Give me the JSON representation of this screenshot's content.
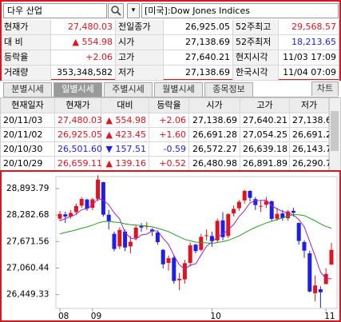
{
  "search": {
    "query": "다우 산업",
    "market": "[미국]:Dow Jones Indices"
  },
  "quote": {
    "rows": [
      [
        "현재가",
        "27,480.03",
        "전일종가",
        "26,925.05",
        "52주최고",
        "29,568.57"
      ],
      [
        "대 비",
        "▲ 554.98",
        "시가",
        "27,138.69",
        "52주최저",
        "18,213.65"
      ],
      [
        "등락율",
        "+2.06",
        "고가",
        "27,640.21",
        "현지시각",
        "11/03 17:09"
      ],
      [
        "거래량",
        "353,348,582",
        "저가",
        "27,138.69",
        "한국시각",
        "11/04 07:09"
      ]
    ]
  },
  "tabs": [
    "분별시세",
    "일별시세",
    "주별시세",
    "월별시세",
    "종목정보"
  ],
  "active_tab": 1,
  "chart_button": "차트",
  "daily": {
    "header": [
      "현재일자",
      "현재가",
      "대비",
      "등락율",
      "시가",
      "고가",
      "저가"
    ],
    "rows": [
      [
        "20/11/03",
        "27,480.03",
        "▲ 554.98",
        "+2.06",
        "27,138.69",
        "27,640.21",
        "27,138.69"
      ],
      [
        "20/11/02",
        "26,925.05",
        "▲ 423.45",
        "+1.60",
        "26,691.28",
        "27,054.25",
        "26,691.28"
      ],
      [
        "20/10/30",
        "26,501.60",
        "▼ 157.51",
        "-0.59",
        "26,572.27",
        "26,639.18",
        "26,143.77"
      ],
      [
        "20/10/29",
        "26,659.11",
        "▲ 139.16",
        "+0.52",
        "26,480.98",
        "26,891.89",
        "26,290.78"
      ]
    ]
  },
  "chart_data": {
    "type": "candlestick",
    "x": [
      "08",
      null,
      null,
      null,
      null,
      null,
      "09",
      null,
      null,
      null,
      null,
      null,
      null,
      null,
      null,
      null,
      null,
      null,
      null,
      null,
      null,
      null,
      null,
      null,
      null,
      null,
      null,
      null,
      "10",
      null,
      null,
      null,
      null,
      null,
      null,
      null,
      null,
      null,
      null,
      null,
      null,
      null,
      null,
      null,
      null,
      null,
      null,
      null,
      null,
      "11",
      null
    ],
    "open": [
      28200,
      28300,
      28250,
      28350,
      28500,
      28640,
      28450,
      28660,
      29040,
      28290,
      27850,
      27560,
      27900,
      27560,
      27750,
      28030,
      28020,
      27950,
      27880,
      27480,
      27180,
      27300,
      26780,
      26800,
      27180,
      27600,
      27480,
      27800,
      27800,
      27700,
      28160,
      27800,
      28320,
      28440,
      28620,
      28840,
      28650,
      28490,
      28520,
      28600,
      28200,
      28320,
      28210,
      28380,
      28100,
      27660,
      27400,
      26481,
      26572,
      26691,
      27139
    ],
    "high": [
      28380,
      28360,
      28400,
      28550,
      28700,
      28660,
      28680,
      29200,
      29050,
      28400,
      27900,
      28000,
      27950,
      27800,
      28050,
      28100,
      28120,
      27980,
      27930,
      27500,
      27350,
      27350,
      26950,
      27250,
      27650,
      27620,
      27850,
      27950,
      27900,
      28200,
      28350,
      28330,
      28500,
      28630,
      28870,
      28850,
      28700,
      28620,
      28700,
      28620,
      28450,
      28400,
      28400,
      28450,
      28110,
      27700,
      27460,
      26892,
      26639,
      27054,
      27640
    ],
    "low": [
      28150,
      28100,
      28200,
      28300,
      28450,
      28380,
      28400,
      28600,
      28250,
      27950,
      27450,
      27500,
      27450,
      27400,
      27700,
      27900,
      27950,
      27800,
      27600,
      27050,
      27000,
      26700,
      26550,
      26700,
      27100,
      27400,
      27450,
      27700,
      27550,
      27650,
      27700,
      27750,
      28250,
      28380,
      28550,
      28600,
      28400,
      28350,
      28450,
      28150,
      28150,
      28150,
      28150,
      28250,
      27600,
      27300,
      26500,
      26291,
      26144,
      26691,
      27139
    ],
    "close": [
      28308,
      28249,
      28332,
      28492,
      28654,
      28430,
      28646,
      29100,
      28292,
      28133,
      27501,
      27940,
      27535,
      27666,
      27993,
      27995,
      28032,
      27902,
      27657,
      27148,
      27288,
      26763,
      26815,
      27174,
      27584,
      27452,
      27782,
      27817,
      27683,
      28149,
      27773,
      28303,
      28426,
      28587,
      28838,
      28680,
      28514,
      28494,
      28606,
      28195,
      28309,
      28211,
      28364,
      28336,
      27685,
      27463,
      26520,
      26659,
      26502,
      26925,
      27480
    ],
    "up_color": "#e0141e",
    "down_color": "#1e1ee6",
    "lines": [
      {
        "color": "#a020d0",
        "values": [
          28150,
          28200,
          28250,
          28300,
          28407,
          28431,
          28511,
          28664,
          28624,
          28520,
          28334,
          28193,
          27880,
          27755,
          27727,
          27826,
          27844,
          27918,
          27916,
          27747,
          27605,
          27352,
          27134,
          27038,
          27125,
          27158,
          27361,
          27562,
          27664,
          27777,
          27841,
          27945,
          28067,
          28248,
          28385,
          28567,
          28609,
          28623,
          28626,
          28498,
          28424,
          28363,
          28337,
          28283,
          28181,
          28012,
          27674,
          27333,
          26966,
          26814,
          26817
        ]
      },
      {
        "color": "#20a020",
        "values": [
          27850,
          27880,
          27910,
          27940,
          27980,
          28010,
          28050,
          28100,
          28130,
          28140,
          28120,
          28110,
          28080,
          28060,
          28050,
          28040,
          28030,
          28010,
          27980,
          27940,
          27900,
          27840,
          27780,
          27720,
          27690,
          27660,
          27650,
          27640,
          27630,
          27650,
          27670,
          27700,
          27750,
          27800,
          27870,
          27940,
          28000,
          28050,
          28100,
          28140,
          28180,
          28220,
          28260,
          28290,
          28290,
          28270,
          28210,
          28150,
          28080,
          28020,
          27980
        ]
      }
    ],
    "ylim": [
      26130,
      29170
    ],
    "yticks": [
      {
        "value": 28893.79,
        "label": "28,893.79"
      },
      {
        "value": 28282.68,
        "label": "28,282.68"
      },
      {
        "value": 27671.56,
        "label": "27,671.56"
      },
      {
        "value": 27060.44,
        "label": "27,060.44"
      },
      {
        "value": 26449.33,
        "label": "26,449.33"
      }
    ]
  }
}
